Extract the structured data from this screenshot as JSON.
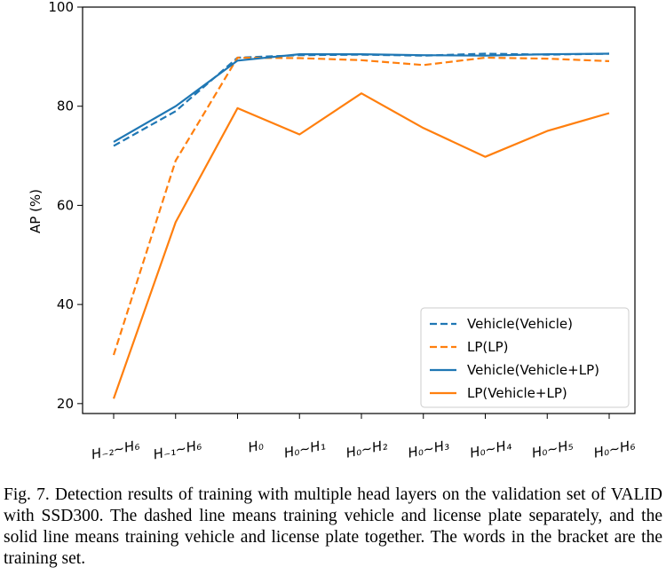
{
  "chart_data": {
    "type": "line",
    "categories": [
      "H₋₂~H₆",
      "H₋₁~H₆",
      "H₀",
      "H₀~H₁",
      "H₀~H₂",
      "H₀~H₃",
      "H₀~H₄",
      "H₀~H₅",
      "H₀~H₆"
    ],
    "ylabel": "AP (%)",
    "xlabel": "",
    "ylim": [
      18,
      100
    ],
    "yticks": [
      20,
      40,
      60,
      80,
      100
    ],
    "grid": false,
    "legend_position": "lower-right",
    "series": [
      {
        "name": "Vehicle(Vehicle)",
        "style": "dashed",
        "color": "#1f77b4",
        "values": [
          72.0,
          79.0,
          89.8,
          90.3,
          90.4,
          90.2,
          90.6,
          90.4,
          90.6
        ]
      },
      {
        "name": "LP(LP)",
        "style": "dashed",
        "color": "#ff7f0e",
        "values": [
          29.8,
          69.0,
          89.8,
          89.7,
          89.3,
          88.3,
          89.8,
          89.6,
          89.1
        ]
      },
      {
        "name": "Vehicle(Vehicle+LP)",
        "style": "solid",
        "color": "#1f77b4",
        "values": [
          72.8,
          80.0,
          89.2,
          90.5,
          90.5,
          90.3,
          90.2,
          90.5,
          90.6
        ]
      },
      {
        "name": "LP(Vehicle+LP)",
        "style": "solid",
        "color": "#ff7f0e",
        "values": [
          21.0,
          56.6,
          79.6,
          74.3,
          82.6,
          75.6,
          69.8,
          75.0,
          78.6
        ]
      }
    ]
  },
  "caption": "Fig. 7.  Detection results of training with multiple head layers on the validation set of VALID with SSD300. The dashed line means training vehicle and license plate separately, and the solid line means training vehicle and license plate together. The words in the bracket are the training set."
}
